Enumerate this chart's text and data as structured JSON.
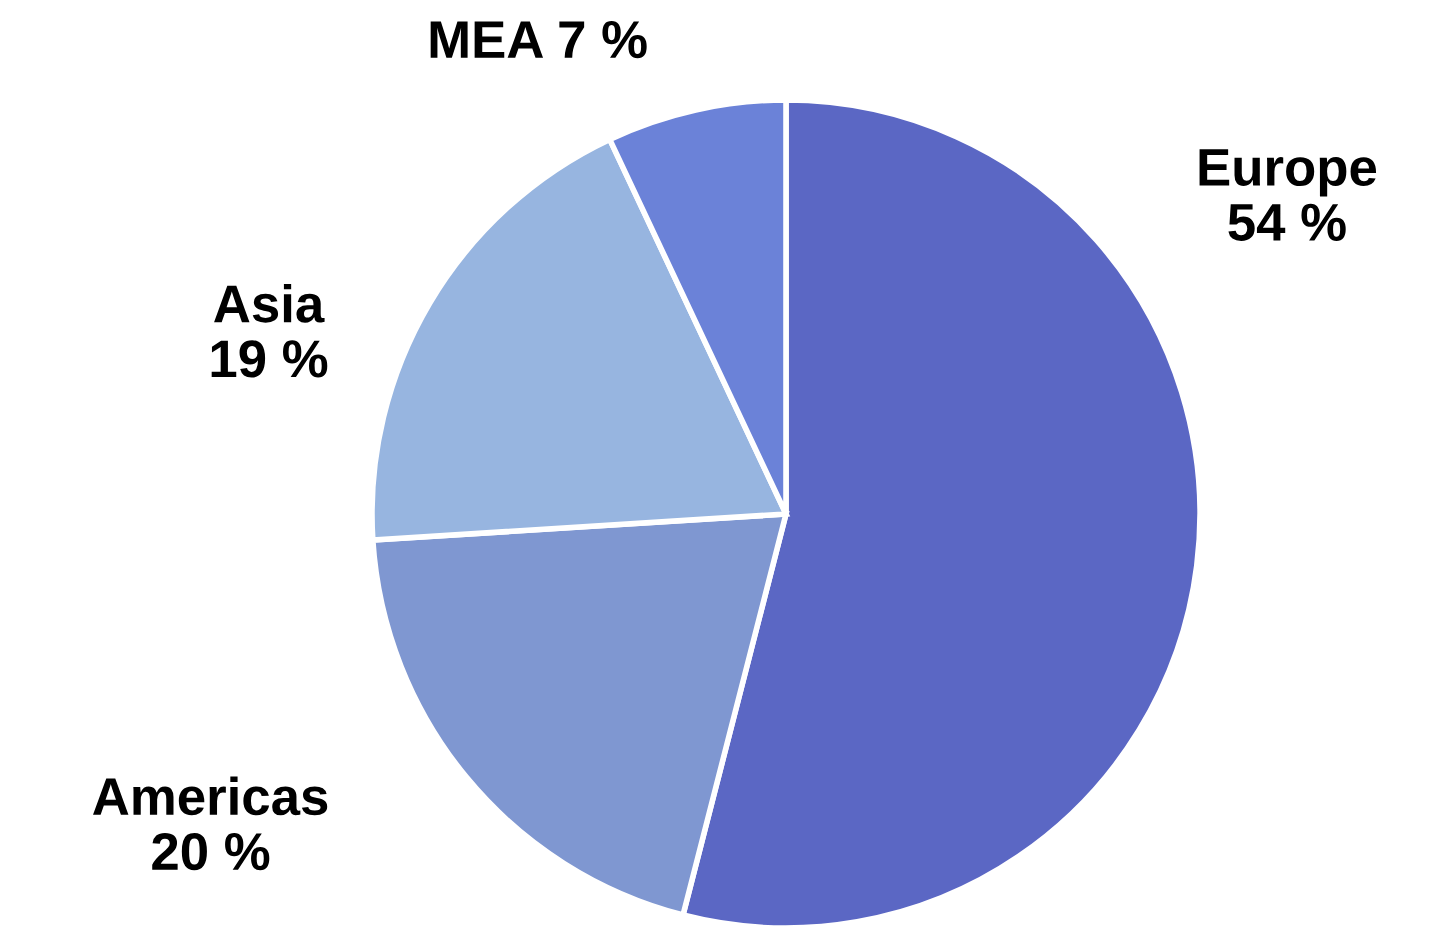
{
  "chart_data": {
    "type": "pie",
    "categories": [
      "Europe",
      "Americas",
      "Asia",
      "MEA"
    ],
    "values": [
      54,
      20,
      19,
      7
    ],
    "value_labels": [
      "54 %",
      "20 %",
      "19 %",
      "7 %"
    ],
    "colors": [
      "#5b67c4",
      "#7f97d1",
      "#97b5e0",
      "#6b82d8"
    ],
    "legend": false
  }
}
